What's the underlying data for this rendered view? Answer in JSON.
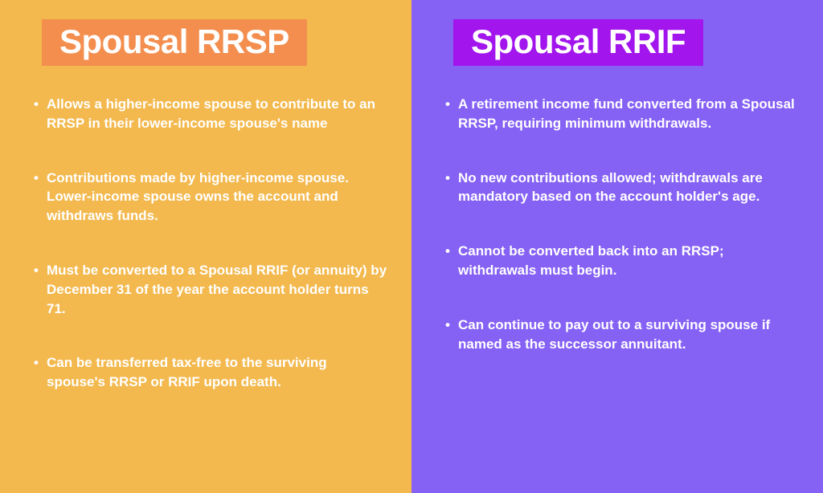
{
  "left": {
    "title": "Spousal RRSP",
    "panel_bg": "#f3b94e",
    "badge_bg": "#f38e4e",
    "items": [
      "Allows a higher-income spouse to contribute to an RRSP in their lower-income spouse's name",
      "Contributions made by higher-income spouse. Lower-income spouse owns the account and withdraws funds.",
      "Must be converted to a Spousal RRIF (or annuity) by December 31 of the year the account holder turns 71.",
      "Can be transferred tax-free to the surviving spouse's RRSP or RRIF upon death."
    ]
  },
  "right": {
    "title": "Spousal RRIF",
    "panel_bg": "#8561f4",
    "badge_bg": "#a215ed",
    "items": [
      "A retirement income fund converted from a Spousal RRSP, requiring minimum withdrawals.",
      "No new contributions allowed; withdrawals are mandatory based on the account holder's age.",
      "Cannot be converted back into an RRSP; withdrawals must begin.",
      "Can continue to pay out to a surviving spouse if named as the successor annuitant."
    ]
  },
  "text_color": "#ffffff",
  "title_fontsize": 42,
  "item_fontsize": 17
}
